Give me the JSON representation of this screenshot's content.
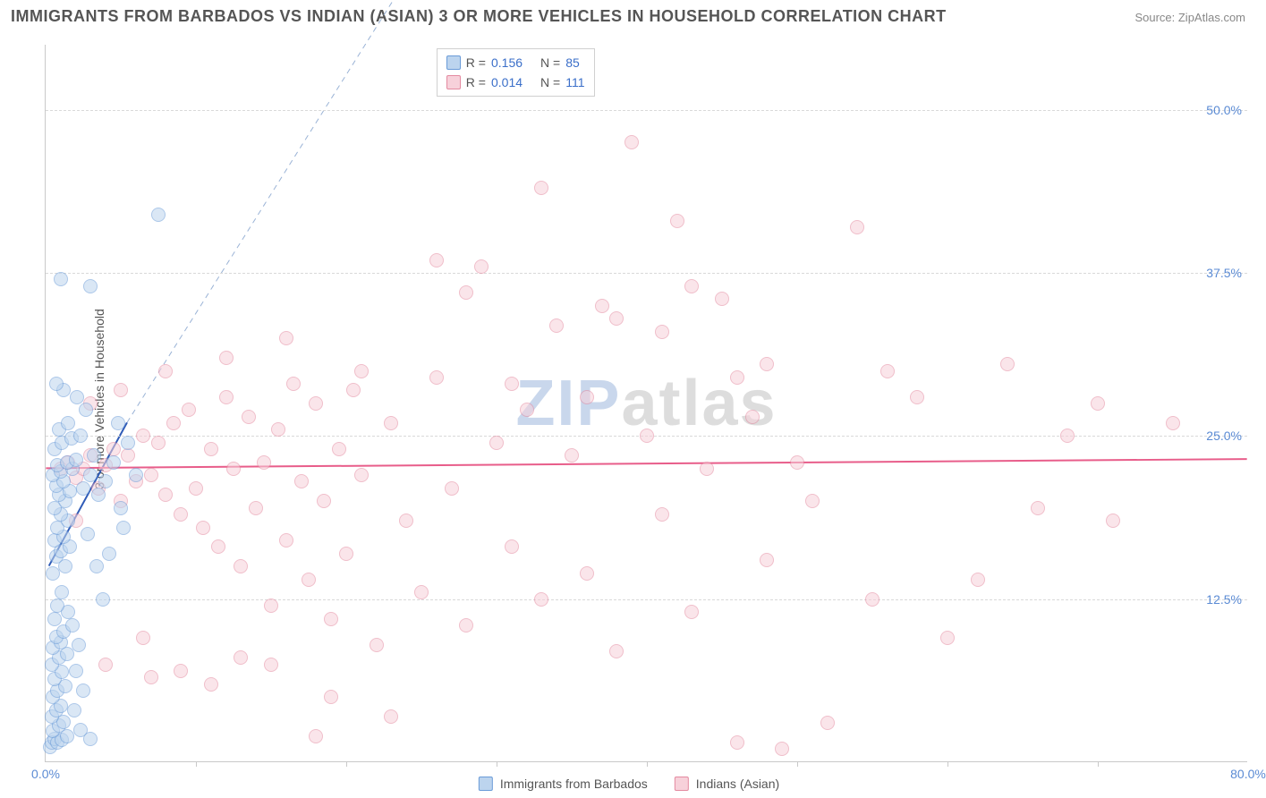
{
  "title": "IMMIGRANTS FROM BARBADOS VS INDIAN (ASIAN) 3 OR MORE VEHICLES IN HOUSEHOLD CORRELATION CHART",
  "source": "Source: ZipAtlas.com",
  "ylabel": "3 or more Vehicles in Household",
  "watermark": {
    "part1": "ZIP",
    "part2": "atlas"
  },
  "chart": {
    "type": "scatter",
    "background_color": "#ffffff",
    "grid_color": "#d9d9d9",
    "axis_color": "#c9c9c9",
    "tick_label_color": "#5b8bd4",
    "tick_fontsize": 14,
    "title_fontsize": 18,
    "title_color": "#555555",
    "x": {
      "min": 0,
      "max": 80,
      "ticks": [
        0,
        80
      ],
      "tick_labels": [
        "0.0%",
        "80.0%"
      ],
      "minor_ticks": [
        10,
        20,
        30,
        40,
        50,
        60,
        70
      ]
    },
    "y": {
      "min": 0,
      "max": 55,
      "ticks": [
        12.5,
        25,
        37.5,
        50
      ],
      "tick_labels": [
        "12.5%",
        "25.0%",
        "37.5%",
        "50.0%"
      ]
    },
    "marker_radius": 8,
    "marker_opacity": 0.55,
    "series": [
      {
        "name": "Immigrants from Barbados",
        "color_fill": "#bcd4ee",
        "color_stroke": "#6a9bd8",
        "R": "0.156",
        "N": "85",
        "trend": {
          "color": "#2f5bb7",
          "width": 2,
          "dash": "none",
          "x1": 0.2,
          "y1": 15,
          "x2": 5.4,
          "y2": 26
        },
        "trend_ext": {
          "color": "#9ab3d6",
          "width": 1,
          "dash": "6,5",
          "x1": 5.4,
          "y1": 26,
          "x2": 24,
          "y2": 60
        },
        "points": [
          [
            0.3,
            1.2
          ],
          [
            0.4,
            1.5
          ],
          [
            0.6,
            1.8
          ],
          [
            0.8,
            1.5
          ],
          [
            1.1,
            1.7
          ],
          [
            1.4,
            2.0
          ],
          [
            0.5,
            2.4
          ],
          [
            0.9,
            2.8
          ],
          [
            1.2,
            3.1
          ],
          [
            0.4,
            3.5
          ],
          [
            0.7,
            4.0
          ],
          [
            1.0,
            4.3
          ],
          [
            0.5,
            5.0
          ],
          [
            0.8,
            5.5
          ],
          [
            1.3,
            5.8
          ],
          [
            0.6,
            6.4
          ],
          [
            1.1,
            6.9
          ],
          [
            0.4,
            7.5
          ],
          [
            0.9,
            8.0
          ],
          [
            1.4,
            8.3
          ],
          [
            0.5,
            8.8
          ],
          [
            1.0,
            9.2
          ],
          [
            0.7,
            9.6
          ],
          [
            1.2,
            10.0
          ],
          [
            0.6,
            11.0
          ],
          [
            1.5,
            11.5
          ],
          [
            0.8,
            12.0
          ],
          [
            1.1,
            13.0
          ],
          [
            0.5,
            14.5
          ],
          [
            1.3,
            15.0
          ],
          [
            0.7,
            15.8
          ],
          [
            1.0,
            16.2
          ],
          [
            1.6,
            16.5
          ],
          [
            0.6,
            17.0
          ],
          [
            1.2,
            17.3
          ],
          [
            0.8,
            18.0
          ],
          [
            1.5,
            18.5
          ],
          [
            1.0,
            19.0
          ],
          [
            0.6,
            19.5
          ],
          [
            1.3,
            20.0
          ],
          [
            0.9,
            20.5
          ],
          [
            1.6,
            20.8
          ],
          [
            0.7,
            21.2
          ],
          [
            1.2,
            21.5
          ],
          [
            0.5,
            22.0
          ],
          [
            1.0,
            22.3
          ],
          [
            1.8,
            22.5
          ],
          [
            0.8,
            22.8
          ],
          [
            1.4,
            23.0
          ],
          [
            2.0,
            23.2
          ],
          [
            0.6,
            24.0
          ],
          [
            1.1,
            24.5
          ],
          [
            1.7,
            24.8
          ],
          [
            2.3,
            25.0
          ],
          [
            0.9,
            25.5
          ],
          [
            1.5,
            26.0
          ],
          [
            2.1,
            28.0
          ],
          [
            1.2,
            28.5
          ],
          [
            0.7,
            29.0
          ],
          [
            2.5,
            21.0
          ],
          [
            3.0,
            22.0
          ],
          [
            3.5,
            20.5
          ],
          [
            3.2,
            23.5
          ],
          [
            4.0,
            21.5
          ],
          [
            4.5,
            23.0
          ],
          [
            5.0,
            19.5
          ],
          [
            2.8,
            17.5
          ],
          [
            3.4,
            15.0
          ],
          [
            1.8,
            10.5
          ],
          [
            2.2,
            9.0
          ],
          [
            2.0,
            7.0
          ],
          [
            2.5,
            5.5
          ],
          [
            1.9,
            4.0
          ],
          [
            2.3,
            2.5
          ],
          [
            3.0,
            1.8
          ],
          [
            1.0,
            37.0
          ],
          [
            3.0,
            36.5
          ],
          [
            7.5,
            42.0
          ],
          [
            6.0,
            22.0
          ],
          [
            5.5,
            24.5
          ],
          [
            4.8,
            26.0
          ],
          [
            5.2,
            18.0
          ],
          [
            4.2,
            16.0
          ],
          [
            3.8,
            12.5
          ],
          [
            2.7,
            27.0
          ]
        ]
      },
      {
        "name": "Indians (Asian)",
        "color_fill": "#f7d1da",
        "color_stroke": "#e48aa0",
        "R": "0.014",
        "N": "111",
        "trend": {
          "color": "#e85d8a",
          "width": 2,
          "dash": "none",
          "x1": 0,
          "y1": 22.5,
          "x2": 80,
          "y2": 23.2
        },
        "points": [
          [
            1.0,
            22.5
          ],
          [
            1.5,
            23.0
          ],
          [
            2.0,
            21.8
          ],
          [
            2.5,
            22.5
          ],
          [
            3.0,
            23.5
          ],
          [
            3.5,
            21.0
          ],
          [
            4.0,
            22.8
          ],
          [
            4.5,
            24.0
          ],
          [
            5.0,
            20.0
          ],
          [
            5.5,
            23.5
          ],
          [
            6.0,
            21.5
          ],
          [
            6.5,
            25.0
          ],
          [
            7.0,
            22.0
          ],
          [
            7.5,
            24.5
          ],
          [
            8.0,
            20.5
          ],
          [
            8.5,
            26.0
          ],
          [
            9.0,
            19.0
          ],
          [
            9.5,
            27.0
          ],
          [
            10.0,
            21.0
          ],
          [
            10.5,
            18.0
          ],
          [
            11.0,
            24.0
          ],
          [
            11.5,
            16.5
          ],
          [
            12.0,
            28.0
          ],
          [
            12.5,
            22.5
          ],
          [
            13.0,
            15.0
          ],
          [
            13.5,
            26.5
          ],
          [
            14.0,
            19.5
          ],
          [
            14.5,
            23.0
          ],
          [
            15.0,
            12.0
          ],
          [
            15.5,
            25.5
          ],
          [
            16.0,
            17.0
          ],
          [
            16.5,
            29.0
          ],
          [
            17.0,
            21.5
          ],
          [
            17.5,
            14.0
          ],
          [
            18.0,
            27.5
          ],
          [
            18.5,
            20.0
          ],
          [
            19.0,
            11.0
          ],
          [
            19.5,
            24.0
          ],
          [
            20.0,
            16.0
          ],
          [
            20.5,
            28.5
          ],
          [
            21.0,
            22.0
          ],
          [
            22.0,
            9.0
          ],
          [
            23.0,
            26.0
          ],
          [
            24.0,
            18.5
          ],
          [
            25.0,
            13.0
          ],
          [
            26.0,
            29.5
          ],
          [
            27.0,
            21.0
          ],
          [
            28.0,
            10.5
          ],
          [
            29.0,
            38.0
          ],
          [
            30.0,
            24.5
          ],
          [
            31.0,
            16.5
          ],
          [
            32.0,
            27.0
          ],
          [
            33.0,
            12.5
          ],
          [
            34.0,
            33.5
          ],
          [
            35.0,
            23.5
          ],
          [
            36.0,
            14.5
          ],
          [
            37.0,
            35.0
          ],
          [
            38.0,
            8.5
          ],
          [
            39.0,
            47.5
          ],
          [
            40.0,
            25.0
          ],
          [
            41.0,
            19.0
          ],
          [
            42.0,
            41.5
          ],
          [
            43.0,
            11.5
          ],
          [
            44.0,
            22.5
          ],
          [
            45.0,
            35.5
          ],
          [
            46.0,
            1.5
          ],
          [
            47.0,
            26.5
          ],
          [
            48.0,
            15.5
          ],
          [
            49.0,
            1.0
          ],
          [
            50.0,
            23.0
          ],
          [
            52.0,
            3.0
          ],
          [
            54.0,
            41.0
          ],
          [
            56.0,
            30.0
          ],
          [
            58.0,
            28.0
          ],
          [
            60.0,
            9.5
          ],
          [
            62.0,
            14.0
          ],
          [
            64.0,
            30.5
          ],
          [
            66.0,
            19.5
          ],
          [
            68.0,
            25.0
          ],
          [
            70.0,
            27.5
          ],
          [
            71.0,
            18.5
          ],
          [
            75.0,
            26.0
          ],
          [
            7.0,
            6.5
          ],
          [
            9.0,
            7.0
          ],
          [
            13.0,
            8.0
          ],
          [
            18.0,
            2.0
          ],
          [
            23.0,
            3.5
          ],
          [
            28.0,
            36.0
          ],
          [
            33.0,
            44.0
          ],
          [
            38.0,
            34.0
          ],
          [
            43.0,
            36.5
          ],
          [
            48.0,
            30.5
          ],
          [
            51.0,
            20.0
          ],
          [
            55.0,
            12.5
          ],
          [
            3.0,
            27.5
          ],
          [
            5.0,
            28.5
          ],
          [
            8.0,
            30.0
          ],
          [
            12.0,
            31.0
          ],
          [
            16.0,
            32.5
          ],
          [
            21.0,
            30.0
          ],
          [
            26.0,
            38.5
          ],
          [
            31.0,
            29.0
          ],
          [
            36.0,
            28.0
          ],
          [
            41.0,
            33.0
          ],
          [
            46.0,
            29.5
          ],
          [
            4.0,
            7.5
          ],
          [
            6.5,
            9.5
          ],
          [
            11.0,
            6.0
          ],
          [
            15.0,
            7.5
          ],
          [
            19.0,
            5.0
          ],
          [
            2.0,
            18.5
          ]
        ]
      }
    ]
  },
  "legend_top": {
    "R_label": "R =",
    "N_label": "N ="
  },
  "legend_bottom": {
    "items": [
      "Immigrants from Barbados",
      "Indians (Asian)"
    ]
  }
}
